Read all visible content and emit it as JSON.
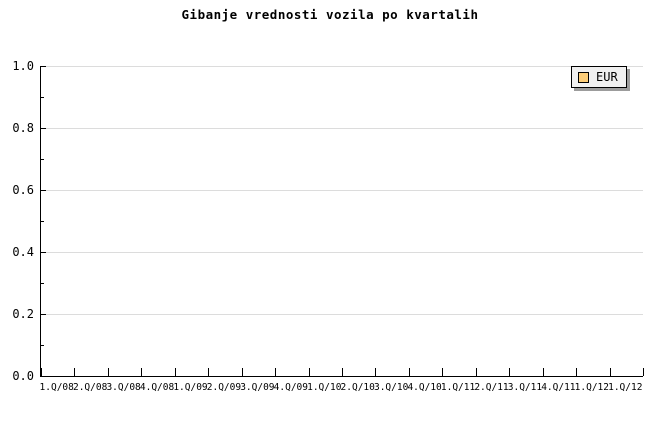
{
  "title": "Gibanje vrednosti vozila po kvartalih",
  "colors": {
    "background": "#ffffff",
    "axis": "#000000",
    "grid": "#dcdcdc",
    "text": "#000000",
    "legend_bg": "#f0f0f0",
    "legend_border": "#000000",
    "legend_shadow": "#9c9c9c",
    "series_eur": "#fccd78"
  },
  "legend": {
    "position": "top-right",
    "items": [
      {
        "label": "EUR",
        "color": "#fccd78"
      }
    ]
  },
  "chart_data": {
    "type": "line",
    "title": "Gibanje vrednosti vozila po kvartalih",
    "xlabel": "",
    "ylabel": "",
    "categories": [
      "1.Q/08",
      "2.Q/08",
      "3.Q/08",
      "4.Q/08",
      "1.Q/09",
      "2.Q/09",
      "3.Q/09",
      "4.Q/09",
      "1.Q/10",
      "2.Q/10",
      "3.Q/10",
      "4.Q/10",
      "1.Q/11",
      "2.Q/11",
      "3.Q/11",
      "4.Q/11",
      "1.Q/12",
      "1.Q/12"
    ],
    "series": [
      {
        "name": "EUR",
        "values": []
      }
    ],
    "ylim": [
      0.0,
      1.0
    ],
    "ytick_labels_top_to_bottom": [
      "1.0",
      "0.8",
      "0.6",
      "0.4",
      "0.2",
      "0.0"
    ],
    "ytick_major_step": 0.2,
    "ytick_minor_step": 0.1,
    "grid": "horizontal-major",
    "legend_position": "top-right"
  }
}
